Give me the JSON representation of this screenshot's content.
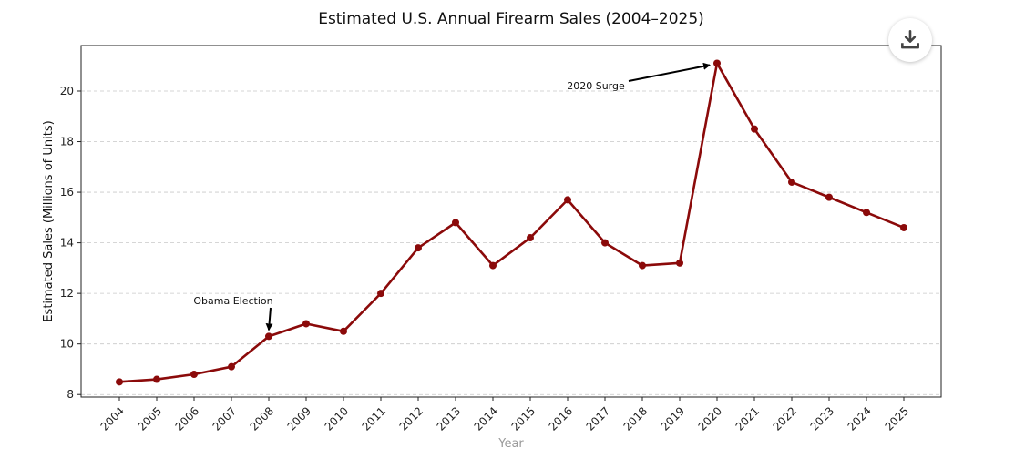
{
  "chart_data": {
    "type": "line",
    "title": "Estimated U.S. Annual Firearm Sales (2004–2025)",
    "xlabel": "Year",
    "ylabel": "Estimated Sales (Millions of Units)",
    "ylim": [
      7.9,
      21.8
    ],
    "yticks": [
      8,
      10,
      12,
      14,
      16,
      18,
      20
    ],
    "grid": "horizontal-dashed",
    "categories": [
      "2004",
      "2005",
      "2006",
      "2007",
      "2008",
      "2009",
      "2010",
      "2011",
      "2012",
      "2013",
      "2014",
      "2015",
      "2016",
      "2017",
      "2018",
      "2019",
      "2020",
      "2021",
      "2022",
      "2023",
      "2024",
      "2025"
    ],
    "series": [
      {
        "name": "Estimated Sales",
        "color": "#8b0a0a",
        "values": [
          8.5,
          8.6,
          8.8,
          9.1,
          10.3,
          10.8,
          10.5,
          12.0,
          13.8,
          14.8,
          13.1,
          14.2,
          15.7,
          14.0,
          13.1,
          13.2,
          21.1,
          18.5,
          16.4,
          15.8,
          15.2,
          14.6
        ]
      }
    ],
    "annotations": [
      {
        "text": "Obama Election",
        "target_x": "2008",
        "target_y": 10.3
      },
      {
        "text": "2020 Surge",
        "target_x": "2020",
        "target_y": 21.1
      }
    ]
  },
  "toolbar": {
    "download_icon": "download-icon"
  }
}
